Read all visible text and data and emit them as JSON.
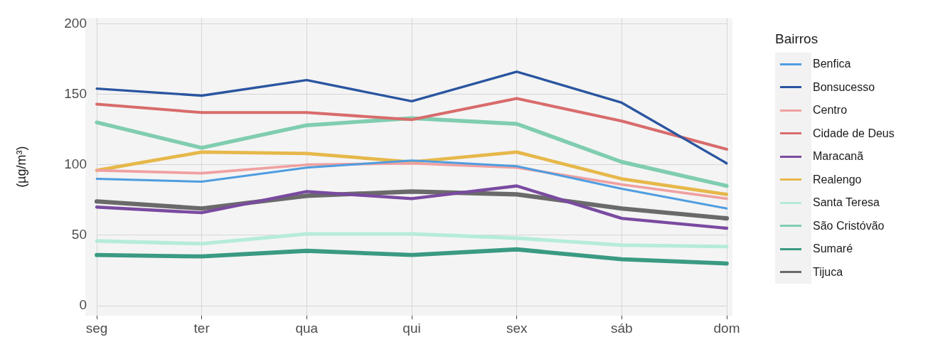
{
  "chart_data": {
    "type": "line",
    "ylabel": "(µg/m³)",
    "legend_title": "Bairros",
    "legend": "right",
    "grid": true,
    "marker": "none",
    "line_style": "solid",
    "categories": [
      "seg",
      "ter",
      "qua",
      "qui",
      "sex",
      "sáb",
      "dom"
    ],
    "ylim": [
      -7,
      204
    ],
    "yticks": [
      0,
      50,
      100,
      150,
      200
    ],
    "series": [
      {
        "name": "Benfica",
        "color": "#4f9de0",
        "values": [
          90,
          88,
          98,
          103,
          99,
          83,
          69
        ]
      },
      {
        "name": "Bonsucesso",
        "color": "#2a55a0",
        "values": [
          154,
          149,
          160,
          145,
          166,
          144,
          101
        ]
      },
      {
        "name": "Centro",
        "color": "#f0a0a0",
        "values": [
          96,
          94,
          100,
          101,
          98,
          86,
          76
        ]
      },
      {
        "name": "Cidade de Deus",
        "color": "#d96b6b",
        "values": [
          143,
          137,
          137,
          132,
          147,
          131,
          111
        ]
      },
      {
        "name": "Maracanã",
        "color": "#7a4aa0",
        "values": [
          70,
          66,
          81,
          76,
          85,
          62,
          55
        ]
      },
      {
        "name": "Realengo",
        "color": "#e6b84a",
        "values": [
          96,
          109,
          108,
          102,
          109,
          90,
          79
        ]
      },
      {
        "name": "Santa Teresa",
        "color": "#b5ecd9",
        "values": [
          46,
          44,
          51,
          51,
          48,
          43,
          42
        ]
      },
      {
        "name": "São Cristóvão",
        "color": "#80cdb0",
        "values": [
          130,
          112,
          128,
          133,
          129,
          102,
          85
        ]
      },
      {
        "name": "Sumaré",
        "color": "#3a9a82",
        "values": [
          36,
          35,
          39,
          36,
          40,
          33,
          30
        ]
      },
      {
        "name": "Tijuca",
        "color": "#6a6a6a",
        "values": [
          74,
          69,
          78,
          81,
          79,
          69,
          62
        ]
      }
    ]
  }
}
